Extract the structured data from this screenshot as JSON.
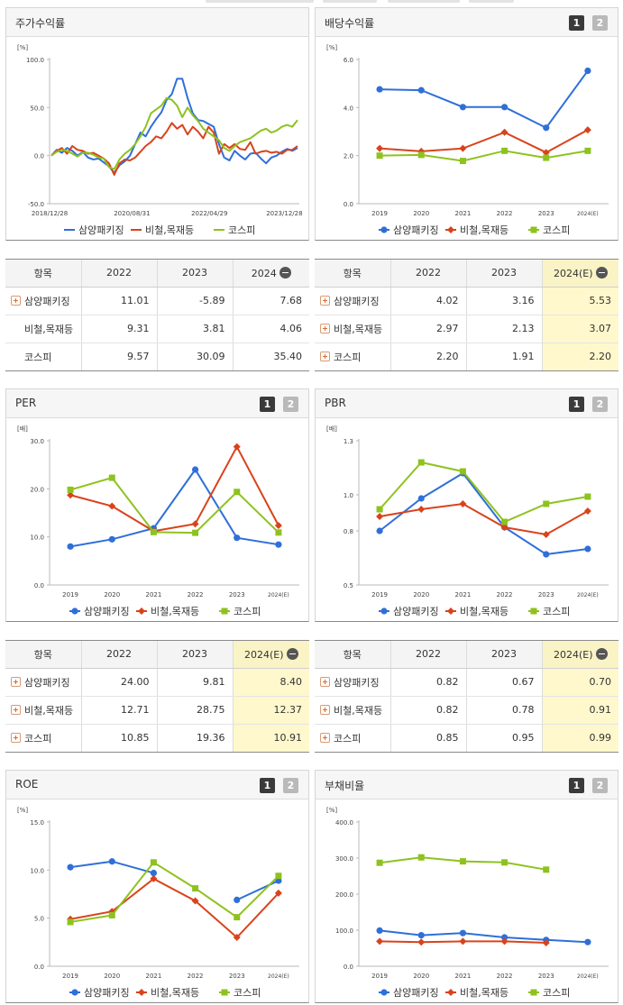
{
  "colors": {
    "blue": "#2f6fd8",
    "red": "#d9431c",
    "green": "#8ec21f"
  },
  "icons": [
    "plus-square-icon",
    "minus-circle-icon",
    "page-1-icon",
    "page-2-icon"
  ],
  "panels": {
    "stock": {
      "title": "주가수익률"
    },
    "dividend": {
      "title": "배당수익률",
      "btn1": "1",
      "btn2": "2"
    },
    "per": {
      "title": "PER",
      "btn1": "1",
      "btn2": "2"
    },
    "pbr": {
      "title": "PBR",
      "btn1": "1",
      "btn2": "2"
    },
    "roe": {
      "title": "ROE",
      "btn1": "1",
      "btn2": "2"
    },
    "debt": {
      "title": "부채비율",
      "btn1": "1",
      "btn2": "2"
    }
  },
  "tables": {
    "stock": {
      "headers": [
        "항목",
        "2022",
        "2023",
        "2024"
      ],
      "rows": [
        {
          "name": "삼양패키징",
          "v": [
            "11.01",
            "-5.89",
            "7.68"
          ]
        },
        {
          "name": "비철,목재등",
          "v": [
            "9.31",
            "3.81",
            "4.06"
          ]
        },
        {
          "name": "코스피",
          "v": [
            "9.57",
            "30.09",
            "35.40"
          ]
        }
      ]
    },
    "dividend": {
      "headers": [
        "항목",
        "2022",
        "2023",
        "2024(E)"
      ],
      "rows": [
        {
          "name": "삼양패키징",
          "v": [
            "4.02",
            "3.16",
            "5.53"
          ]
        },
        {
          "name": "비철,목재등",
          "v": [
            "2.97",
            "2.13",
            "3.07"
          ]
        },
        {
          "name": "코스피",
          "v": [
            "2.20",
            "1.91",
            "2.20"
          ]
        }
      ]
    },
    "per": {
      "headers": [
        "항목",
        "2022",
        "2023",
        "2024(E)"
      ],
      "rows": [
        {
          "name": "삼양패키징",
          "v": [
            "24.00",
            "9.81",
            "8.40"
          ]
        },
        {
          "name": "비철,목재등",
          "v": [
            "12.71",
            "28.75",
            "12.37"
          ]
        },
        {
          "name": "코스피",
          "v": [
            "10.85",
            "19.36",
            "10.91"
          ]
        }
      ]
    },
    "pbr": {
      "headers": [
        "항목",
        "2022",
        "2023",
        "2024(E)"
      ],
      "rows": [
        {
          "name": "삼양패키징",
          "v": [
            "0.82",
            "0.67",
            "0.70"
          ]
        },
        {
          "name": "비철,목재등",
          "v": [
            "0.82",
            "0.78",
            "0.91"
          ]
        },
        {
          "name": "코스피",
          "v": [
            "0.85",
            "0.95",
            "0.99"
          ]
        }
      ]
    }
  },
  "chart_data": [
    {
      "id": "stock",
      "type": "line",
      "unit": "[%]",
      "ylim": [
        -50,
        100
      ],
      "yticks": [
        "100.0",
        "50.0",
        "0.0",
        "-50.0"
      ],
      "ytickvals": [
        100,
        50,
        0,
        -50
      ],
      "xticklabels": [
        "2018/12/28",
        "2020/08/31",
        "2022/04/29",
        "2023/12/28"
      ],
      "series": [
        {
          "name": "삼양패키징",
          "color": "#2f6fd8",
          "values": [
            0,
            6,
            3,
            8,
            5,
            0,
            4,
            -2,
            -4,
            -3,
            -7,
            -11,
            -18,
            -10,
            -6,
            0,
            12,
            24,
            20,
            30,
            38,
            45,
            58,
            64,
            80,
            80,
            60,
            44,
            37,
            36,
            33,
            30,
            12,
            -2,
            -5,
            5,
            0,
            -4,
            2,
            3,
            -3,
            -8,
            -2,
            0,
            4,
            7,
            5,
            8
          ]
        },
        {
          "name": "비철,목재등",
          "color": "#d9431c",
          "values": [
            0,
            5,
            8,
            2,
            10,
            6,
            5,
            2,
            3,
            0,
            -3,
            -8,
            -20,
            -8,
            -4,
            -5,
            -2,
            4,
            10,
            14,
            20,
            18,
            25,
            34,
            28,
            32,
            22,
            30,
            25,
            18,
            30,
            24,
            2,
            12,
            8,
            12,
            7,
            6,
            14,
            2,
            4,
            5,
            3,
            4,
            2,
            6,
            6,
            10
          ]
        },
        {
          "name": "코스피",
          "color": "#8ec21f",
          "values": [
            0,
            4,
            6,
            5,
            2,
            -1,
            3,
            3,
            1,
            -2,
            -3,
            -12,
            -14,
            -4,
            2,
            6,
            12,
            20,
            30,
            44,
            48,
            52,
            60,
            58,
            52,
            40,
            50,
            42,
            36,
            28,
            24,
            20,
            16,
            8,
            5,
            10,
            14,
            16,
            18,
            22,
            26,
            28,
            24,
            26,
            30,
            32,
            30,
            37
          ]
        }
      ]
    },
    {
      "id": "dividend",
      "type": "line",
      "unit": "[%]",
      "ylim": [
        0,
        6
      ],
      "yticks": [
        "6.0",
        "4.0",
        "2.0",
        "0.0"
      ],
      "ytickvals": [
        6,
        4,
        2,
        0
      ],
      "categories": [
        "2019",
        "2020",
        "2021",
        "2022",
        "2023",
        "2024(E)"
      ],
      "series": [
        {
          "name": "삼양패키징",
          "color": "#2f6fd8",
          "marker": "circle",
          "values": [
            4.76,
            4.72,
            4.02,
            4.02,
            3.16,
            5.53
          ]
        },
        {
          "name": "비철,목재등",
          "color": "#d9431c",
          "marker": "diamond",
          "values": [
            2.3,
            2.18,
            2.3,
            2.97,
            2.13,
            3.07
          ]
        },
        {
          "name": "코스피",
          "color": "#8ec21f",
          "marker": "square",
          "values": [
            2.0,
            2.03,
            1.78,
            2.2,
            1.91,
            2.2
          ]
        }
      ]
    },
    {
      "id": "per",
      "type": "line",
      "unit": "[배]",
      "ylim": [
        0,
        30
      ],
      "yticks": [
        "30.0",
        "20.0",
        "10.0",
        "0.0"
      ],
      "ytickvals": [
        30,
        20,
        10,
        0
      ],
      "categories": [
        "2019",
        "2020",
        "2021",
        "2022",
        "2023",
        "2024(E)"
      ],
      "series": [
        {
          "name": "삼양패키징",
          "color": "#2f6fd8",
          "marker": "circle",
          "values": [
            8.0,
            9.5,
            11.8,
            24.0,
            9.81,
            8.4
          ]
        },
        {
          "name": "비철,목재등",
          "color": "#d9431c",
          "marker": "diamond",
          "values": [
            18.7,
            16.4,
            11.2,
            12.71,
            28.75,
            12.37
          ]
        },
        {
          "name": "코스피",
          "color": "#8ec21f",
          "marker": "square",
          "values": [
            19.8,
            22.3,
            11.0,
            10.85,
            19.36,
            10.91
          ]
        }
      ]
    },
    {
      "id": "pbr",
      "type": "line",
      "unit": "[배]",
      "ylim": [
        0.5,
        1.3
      ],
      "yticks": [
        "1.3",
        "1.0",
        "0.8",
        "0.5"
      ],
      "ytickvals": [
        1.3,
        1.0,
        0.8,
        0.5
      ],
      "categories": [
        "2019",
        "2020",
        "2021",
        "2022",
        "2023",
        "2024(E)"
      ],
      "series": [
        {
          "name": "삼양패키징",
          "color": "#2f6fd8",
          "marker": "circle",
          "values": [
            0.8,
            0.98,
            1.12,
            0.82,
            0.67,
            0.7
          ]
        },
        {
          "name": "비철,목재등",
          "color": "#d9431c",
          "marker": "diamond",
          "values": [
            0.88,
            0.92,
            0.95,
            0.82,
            0.78,
            0.91
          ]
        },
        {
          "name": "코스피",
          "color": "#8ec21f",
          "marker": "square",
          "values": [
            0.92,
            1.18,
            1.13,
            0.85,
            0.95,
            0.99
          ]
        }
      ]
    },
    {
      "id": "roe",
      "type": "line",
      "unit": "[%]",
      "ylim": [
        0,
        15
      ],
      "yticks": [
        "15.0",
        "10.0",
        "5.0",
        "0.0"
      ],
      "ytickvals": [
        15,
        10,
        5,
        0
      ],
      "categories": [
        "2019",
        "2020",
        "2021",
        "2022",
        "2023",
        "2024(E)"
      ],
      "series": [
        {
          "name": "삼양패키징",
          "color": "#2f6fd8",
          "marker": "circle",
          "values": [
            10.3,
            10.9,
            9.7,
            null,
            6.9,
            8.9
          ]
        },
        {
          "name": "비철,목재등",
          "color": "#d9431c",
          "marker": "diamond",
          "values": [
            4.9,
            5.7,
            9.1,
            6.8,
            3.0,
            7.6
          ]
        },
        {
          "name": "코스피",
          "color": "#8ec21f",
          "marker": "square",
          "values": [
            4.6,
            5.3,
            10.8,
            8.1,
            5.1,
            9.4
          ]
        }
      ]
    },
    {
      "id": "debt",
      "type": "line",
      "unit": "[%]",
      "ylim": [
        0,
        400
      ],
      "yticks": [
        "400.0",
        "300.0",
        "200.0",
        "100.0",
        "0.0"
      ],
      "ytickvals": [
        400,
        300,
        200,
        100,
        0
      ],
      "categories": [
        "2019",
        "2020",
        "2021",
        "2022",
        "2023",
        "2024(E)"
      ],
      "series": [
        {
          "name": "삼양패키징",
          "color": "#2f6fd8",
          "marker": "circle",
          "values": [
            99,
            86,
            92,
            80,
            73,
            67
          ]
        },
        {
          "name": "비철,목재등",
          "color": "#d9431c",
          "marker": "diamond",
          "values": [
            69,
            67,
            69,
            69,
            65,
            null
          ]
        },
        {
          "name": "코스피",
          "color": "#8ec21f",
          "marker": "square",
          "values": [
            287,
            302,
            291,
            288,
            268,
            null
          ]
        }
      ]
    }
  ]
}
